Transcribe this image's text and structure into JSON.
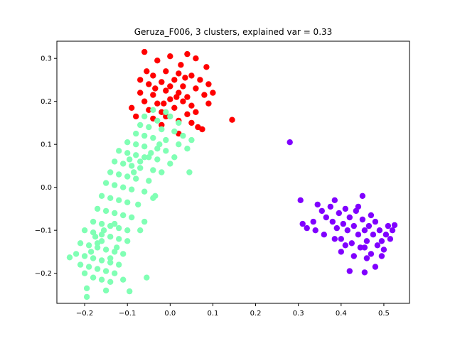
{
  "chart_data": {
    "type": "scatter",
    "title": "Geruza_F006, 3 clusters, explained var = 0.33",
    "xlabel": "",
    "ylabel": "",
    "xlim": [
      -0.265,
      0.56
    ],
    "ylim": [
      -0.27,
      0.34
    ],
    "xticks": [
      -0.2,
      -0.1,
      0.0,
      0.1,
      0.2,
      0.3,
      0.4,
      0.5
    ],
    "xtick_labels": [
      "−0.2",
      "−0.1",
      "0.0",
      "0.1",
      "0.2",
      "0.3",
      "0.4",
      "0.5"
    ],
    "yticks": [
      -0.2,
      -0.1,
      0.0,
      0.1,
      0.2,
      0.3
    ],
    "ytick_labels": [
      "−0.2",
      "−0.1",
      "0.0",
      "0.1",
      "0.2",
      "0.3"
    ],
    "grid": false,
    "legend": "none",
    "series": [
      {
        "color": "#ff0000",
        "points": [
          [
            -0.06,
            0.315
          ],
          [
            0.0,
            0.305
          ],
          [
            0.04,
            0.31
          ],
          [
            -0.03,
            0.295
          ],
          [
            0.06,
            0.3
          ],
          [
            0.085,
            0.28
          ],
          [
            -0.07,
            0.25
          ],
          [
            -0.04,
            0.26
          ],
          [
            -0.01,
            0.27
          ],
          [
            0.02,
            0.265
          ],
          [
            0.05,
            0.26
          ],
          [
            0.07,
            0.25
          ],
          [
            -0.05,
            0.24
          ],
          [
            -0.02,
            0.245
          ],
          [
            0.01,
            0.25
          ],
          [
            0.03,
            0.235
          ],
          [
            0.06,
            0.23
          ],
          [
            0.09,
            0.24
          ],
          [
            -0.07,
            0.22
          ],
          [
            -0.04,
            0.215
          ],
          [
            -0.01,
            0.225
          ],
          [
            0.02,
            0.22
          ],
          [
            0.04,
            0.21
          ],
          [
            0.08,
            0.215
          ],
          [
            -0.06,
            0.2
          ],
          [
            -0.03,
            0.195
          ],
          [
            0.0,
            0.205
          ],
          [
            0.03,
            0.2
          ],
          [
            0.05,
            0.19
          ],
          [
            0.1,
            0.22
          ],
          [
            -0.05,
            0.18
          ],
          [
            -0.02,
            0.175
          ],
          [
            0.01,
            0.185
          ],
          [
            0.04,
            0.17
          ],
          [
            0.06,
            0.175
          ],
          [
            0.09,
            0.195
          ],
          [
            -0.09,
            0.185
          ],
          [
            -0.08,
            0.165
          ],
          [
            -0.04,
            0.16
          ],
          [
            -0.01,
            0.165
          ],
          [
            0.02,
            0.155
          ],
          [
            0.05,
            0.15
          ],
          [
            0.065,
            0.14
          ],
          [
            0.075,
            0.135
          ],
          [
            0.02,
            0.125
          ],
          [
            -0.02,
            0.145
          ],
          [
            0.145,
            0.157
          ],
          [
            -0.055,
            0.27
          ],
          [
            0.025,
            0.285
          ],
          [
            -0.035,
            0.23
          ],
          [
            0.035,
            0.255
          ],
          [
            0.0,
            0.235
          ],
          [
            -0.015,
            0.195
          ],
          [
            0.015,
            0.21
          ]
        ]
      },
      {
        "color": "#80ffb4",
        "points": [
          [
            -0.04,
            0.18
          ],
          [
            -0.01,
            0.175
          ],
          [
            0.0,
            0.165
          ],
          [
            -0.06,
            0.165
          ],
          [
            -0.03,
            0.155
          ],
          [
            0.02,
            0.15
          ],
          [
            -0.07,
            0.145
          ],
          [
            -0.05,
            0.14
          ],
          [
            -0.02,
            0.135
          ],
          [
            0.01,
            0.13
          ],
          [
            0.03,
            0.12
          ],
          [
            0.05,
            0.11
          ],
          [
            -0.08,
            0.125
          ],
          [
            -0.06,
            0.12
          ],
          [
            -0.04,
            0.115
          ],
          [
            -0.01,
            0.11
          ],
          [
            0.02,
            0.1
          ],
          [
            0.04,
            0.09
          ],
          [
            -0.1,
            0.105
          ],
          [
            -0.08,
            0.1
          ],
          [
            -0.06,
            0.095
          ],
          [
            -0.03,
            0.09
          ],
          [
            -0.01,
            0.085
          ],
          [
            0.01,
            0.07
          ],
          [
            -0.12,
            0.085
          ],
          [
            -0.1,
            0.08
          ],
          [
            -0.08,
            0.075
          ],
          [
            -0.05,
            0.07
          ],
          [
            -0.03,
            0.065
          ],
          [
            0.0,
            0.055
          ],
          [
            -0.13,
            0.06
          ],
          [
            -0.11,
            0.055
          ],
          [
            -0.09,
            0.05
          ],
          [
            -0.07,
            0.045
          ],
          [
            -0.04,
            0.04
          ],
          [
            -0.02,
            0.035
          ],
          [
            -0.14,
            0.035
          ],
          [
            -0.12,
            0.03
          ],
          [
            -0.1,
            0.025
          ],
          [
            -0.08,
            0.02
          ],
          [
            -0.05,
            0.015
          ],
          [
            0.045,
            0.035
          ],
          [
            -0.15,
            0.01
          ],
          [
            -0.13,
            0.005
          ],
          [
            -0.11,
            0.0
          ],
          [
            -0.09,
            -0.005
          ],
          [
            -0.06,
            -0.01
          ],
          [
            -0.035,
            -0.02
          ],
          [
            -0.16,
            -0.02
          ],
          [
            -0.14,
            -0.025
          ],
          [
            -0.12,
            -0.03
          ],
          [
            -0.1,
            -0.035
          ],
          [
            -0.075,
            -0.04
          ],
          [
            -0.04,
            -0.025
          ],
          [
            -0.17,
            -0.05
          ],
          [
            -0.15,
            -0.055
          ],
          [
            -0.13,
            -0.06
          ],
          [
            -0.11,
            -0.065
          ],
          [
            -0.09,
            -0.07
          ],
          [
            -0.06,
            -0.08
          ],
          [
            -0.18,
            -0.08
          ],
          [
            -0.16,
            -0.085
          ],
          [
            -0.14,
            -0.09
          ],
          [
            -0.12,
            -0.095
          ],
          [
            -0.1,
            -0.1
          ],
          [
            -0.07,
            -0.1
          ],
          [
            -0.2,
            -0.1
          ],
          [
            -0.18,
            -0.105
          ],
          [
            -0.16,
            -0.11
          ],
          [
            -0.14,
            -0.115
          ],
          [
            -0.12,
            -0.12
          ],
          [
            -0.1,
            -0.125
          ],
          [
            -0.21,
            -0.13
          ],
          [
            -0.19,
            -0.135
          ],
          [
            -0.17,
            -0.14
          ],
          [
            -0.15,
            -0.145
          ],
          [
            -0.13,
            -0.15
          ],
          [
            -0.11,
            -0.155
          ],
          [
            -0.22,
            -0.155
          ],
          [
            -0.2,
            -0.16
          ],
          [
            -0.18,
            -0.165
          ],
          [
            -0.16,
            -0.17
          ],
          [
            -0.14,
            -0.175
          ],
          [
            -0.12,
            -0.18
          ],
          [
            -0.235,
            -0.163
          ],
          [
            -0.21,
            -0.18
          ],
          [
            -0.19,
            -0.185
          ],
          [
            -0.17,
            -0.19
          ],
          [
            -0.15,
            -0.195
          ],
          [
            -0.13,
            -0.2
          ],
          [
            -0.2,
            -0.2
          ],
          [
            -0.18,
            -0.21
          ],
          [
            -0.16,
            -0.215
          ],
          [
            -0.14,
            -0.22
          ],
          [
            -0.195,
            -0.235
          ],
          [
            -0.11,
            -0.215
          ],
          [
            -0.195,
            -0.255
          ],
          [
            -0.095,
            -0.242
          ],
          [
            -0.055,
            -0.21
          ],
          [
            -0.15,
            -0.24
          ],
          [
            -0.17,
            -0.13
          ],
          [
            -0.155,
            -0.1
          ],
          [
            -0.185,
            -0.15
          ],
          [
            -0.14,
            -0.165
          ],
          [
            -0.16,
            -0.125
          ],
          [
            -0.125,
            -0.14
          ],
          [
            -0.175,
            -0.115
          ],
          [
            -0.13,
            -0.085
          ],
          [
            -0.06,
            0.07
          ],
          [
            -0.045,
            0.08
          ],
          [
            -0.07,
            0.06
          ],
          [
            -0.085,
            0.035
          ],
          [
            -0.095,
            0.065
          ],
          [
            -0.025,
            0.1
          ]
        ]
      },
      {
        "color": "#8000ff",
        "points": [
          [
            0.28,
            0.105
          ],
          [
            0.305,
            -0.03
          ],
          [
            0.31,
            -0.085
          ],
          [
            0.32,
            -0.095
          ],
          [
            0.335,
            -0.08
          ],
          [
            0.34,
            -0.1
          ],
          [
            0.345,
            -0.04
          ],
          [
            0.355,
            -0.055
          ],
          [
            0.365,
            -0.07
          ],
          [
            0.375,
            -0.045
          ],
          [
            0.38,
            -0.08
          ],
          [
            0.385,
            -0.03
          ],
          [
            0.39,
            -0.095
          ],
          [
            0.395,
            -0.06
          ],
          [
            0.4,
            -0.12
          ],
          [
            0.405,
            -0.085
          ],
          [
            0.41,
            -0.05
          ],
          [
            0.415,
            -0.1
          ],
          [
            0.42,
            -0.07
          ],
          [
            0.425,
            -0.13
          ],
          [
            0.43,
            -0.09
          ],
          [
            0.435,
            -0.055
          ],
          [
            0.44,
            -0.11
          ],
          [
            0.445,
            -0.14
          ],
          [
            0.45,
            -0.075
          ],
          [
            0.455,
            -0.1
          ],
          [
            0.46,
            -0.125
          ],
          [
            0.465,
            -0.09
          ],
          [
            0.47,
            -0.155
          ],
          [
            0.475,
            -0.11
          ],
          [
            0.48,
            -0.08
          ],
          [
            0.485,
            -0.135
          ],
          [
            0.49,
            -0.1
          ],
          [
            0.495,
            -0.125
          ],
          [
            0.5,
            -0.145
          ],
          [
            0.505,
            -0.11
          ],
          [
            0.51,
            -0.09
          ],
          [
            0.515,
            -0.12
          ],
          [
            0.52,
            -0.1
          ],
          [
            0.525,
            -0.088
          ],
          [
            0.42,
            -0.195
          ],
          [
            0.455,
            -0.198
          ],
          [
            0.48,
            -0.185
          ],
          [
            0.45,
            -0.02
          ],
          [
            0.385,
            -0.12
          ],
          [
            0.43,
            -0.16
          ],
          [
            0.46,
            -0.165
          ],
          [
            0.495,
            -0.16
          ],
          [
            0.44,
            -0.045
          ],
          [
            0.47,
            -0.065
          ],
          [
            0.4,
            -0.15
          ],
          [
            0.36,
            -0.11
          ],
          [
            0.41,
            -0.135
          ],
          [
            0.455,
            -0.14
          ]
        ]
      }
    ]
  }
}
